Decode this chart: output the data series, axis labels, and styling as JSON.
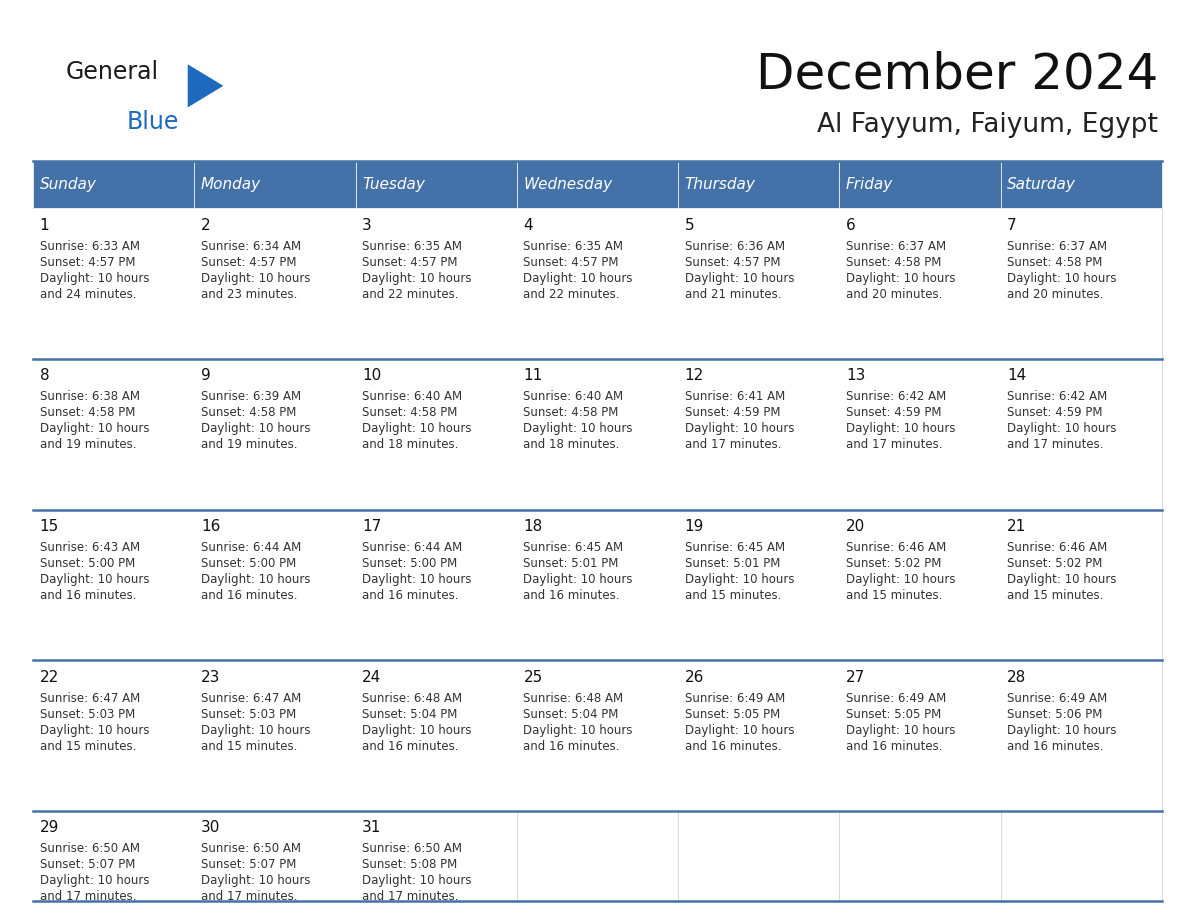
{
  "title": "December 2024",
  "subtitle": "Al Fayyum, Faiyum, Egypt",
  "header_color": "#4472a8",
  "header_text_color": "#ffffff",
  "border_color": "#4472a8",
  "day_headers": [
    "Sunday",
    "Monday",
    "Tuesday",
    "Wednesday",
    "Thursday",
    "Friday",
    "Saturday"
  ],
  "days": [
    {
      "day": 1,
      "col": 0,
      "row": 0,
      "sunrise": "6:33 AM",
      "sunset": "4:57 PM",
      "daylight_min": "24"
    },
    {
      "day": 2,
      "col": 1,
      "row": 0,
      "sunrise": "6:34 AM",
      "sunset": "4:57 PM",
      "daylight_min": "23"
    },
    {
      "day": 3,
      "col": 2,
      "row": 0,
      "sunrise": "6:35 AM",
      "sunset": "4:57 PM",
      "daylight_min": "22"
    },
    {
      "day": 4,
      "col": 3,
      "row": 0,
      "sunrise": "6:35 AM",
      "sunset": "4:57 PM",
      "daylight_min": "22"
    },
    {
      "day": 5,
      "col": 4,
      "row": 0,
      "sunrise": "6:36 AM",
      "sunset": "4:57 PM",
      "daylight_min": "21"
    },
    {
      "day": 6,
      "col": 5,
      "row": 0,
      "sunrise": "6:37 AM",
      "sunset": "4:58 PM",
      "daylight_min": "20"
    },
    {
      "day": 7,
      "col": 6,
      "row": 0,
      "sunrise": "6:37 AM",
      "sunset": "4:58 PM",
      "daylight_min": "20"
    },
    {
      "day": 8,
      "col": 0,
      "row": 1,
      "sunrise": "6:38 AM",
      "sunset": "4:58 PM",
      "daylight_min": "19"
    },
    {
      "day": 9,
      "col": 1,
      "row": 1,
      "sunrise": "6:39 AM",
      "sunset": "4:58 PM",
      "daylight_min": "19"
    },
    {
      "day": 10,
      "col": 2,
      "row": 1,
      "sunrise": "6:40 AM",
      "sunset": "4:58 PM",
      "daylight_min": "18"
    },
    {
      "day": 11,
      "col": 3,
      "row": 1,
      "sunrise": "6:40 AM",
      "sunset": "4:58 PM",
      "daylight_min": "18"
    },
    {
      "day": 12,
      "col": 4,
      "row": 1,
      "sunrise": "6:41 AM",
      "sunset": "4:59 PM",
      "daylight_min": "17"
    },
    {
      "day": 13,
      "col": 5,
      "row": 1,
      "sunrise": "6:42 AM",
      "sunset": "4:59 PM",
      "daylight_min": "17"
    },
    {
      "day": 14,
      "col": 6,
      "row": 1,
      "sunrise": "6:42 AM",
      "sunset": "4:59 PM",
      "daylight_min": "17"
    },
    {
      "day": 15,
      "col": 0,
      "row": 2,
      "sunrise": "6:43 AM",
      "sunset": "5:00 PM",
      "daylight_min": "16"
    },
    {
      "day": 16,
      "col": 1,
      "row": 2,
      "sunrise": "6:44 AM",
      "sunset": "5:00 PM",
      "daylight_min": "16"
    },
    {
      "day": 17,
      "col": 2,
      "row": 2,
      "sunrise": "6:44 AM",
      "sunset": "5:00 PM",
      "daylight_min": "16"
    },
    {
      "day": 18,
      "col": 3,
      "row": 2,
      "sunrise": "6:45 AM",
      "sunset": "5:01 PM",
      "daylight_min": "16"
    },
    {
      "day": 19,
      "col": 4,
      "row": 2,
      "sunrise": "6:45 AM",
      "sunset": "5:01 PM",
      "daylight_min": "15"
    },
    {
      "day": 20,
      "col": 5,
      "row": 2,
      "sunrise": "6:46 AM",
      "sunset": "5:02 PM",
      "daylight_min": "15"
    },
    {
      "day": 21,
      "col": 6,
      "row": 2,
      "sunrise": "6:46 AM",
      "sunset": "5:02 PM",
      "daylight_min": "15"
    },
    {
      "day": 22,
      "col": 0,
      "row": 3,
      "sunrise": "6:47 AM",
      "sunset": "5:03 PM",
      "daylight_min": "15"
    },
    {
      "day": 23,
      "col": 1,
      "row": 3,
      "sunrise": "6:47 AM",
      "sunset": "5:03 PM",
      "daylight_min": "15"
    },
    {
      "day": 24,
      "col": 2,
      "row": 3,
      "sunrise": "6:48 AM",
      "sunset": "5:04 PM",
      "daylight_min": "16"
    },
    {
      "day": 25,
      "col": 3,
      "row": 3,
      "sunrise": "6:48 AM",
      "sunset": "5:04 PM",
      "daylight_min": "16"
    },
    {
      "day": 26,
      "col": 4,
      "row": 3,
      "sunrise": "6:49 AM",
      "sunset": "5:05 PM",
      "daylight_min": "16"
    },
    {
      "day": 27,
      "col": 5,
      "row": 3,
      "sunrise": "6:49 AM",
      "sunset": "5:05 PM",
      "daylight_min": "16"
    },
    {
      "day": 28,
      "col": 6,
      "row": 3,
      "sunrise": "6:49 AM",
      "sunset": "5:06 PM",
      "daylight_min": "16"
    },
    {
      "day": 29,
      "col": 0,
      "row": 4,
      "sunrise": "6:50 AM",
      "sunset": "5:07 PM",
      "daylight_min": "17"
    },
    {
      "day": 30,
      "col": 1,
      "row": 4,
      "sunrise": "6:50 AM",
      "sunset": "5:07 PM",
      "daylight_min": "17"
    },
    {
      "day": 31,
      "col": 2,
      "row": 4,
      "sunrise": "6:50 AM",
      "sunset": "5:08 PM",
      "daylight_min": "17"
    }
  ],
  "num_rows": 5,
  "logo_general_color": "#1a1a1a",
  "logo_blue_color": "#1e6abf",
  "logo_triangle_color": "#1e6abf",
  "title_fontsize": 36,
  "subtitle_fontsize": 19,
  "header_fontsize": 11,
  "daynum_fontsize": 11,
  "cell_text_fontsize": 8.5
}
